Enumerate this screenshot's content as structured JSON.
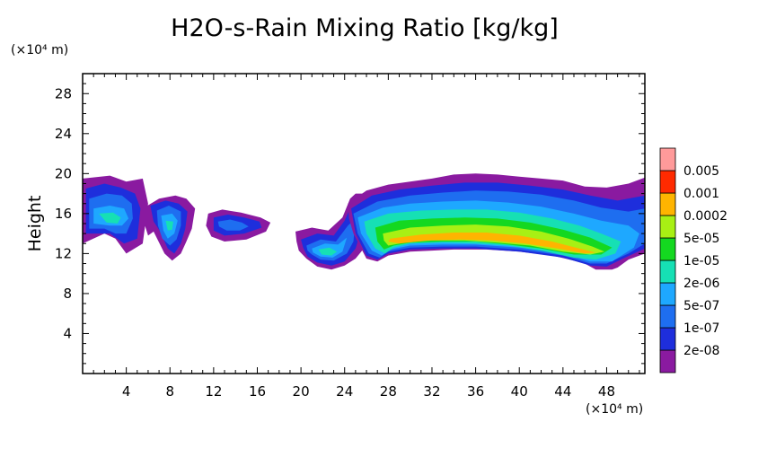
{
  "chart_data": {
    "type": "heatmap",
    "title": "H2O-s-Rain Mixing Ratio [kg/kg]",
    "ylabel": "Height",
    "xlabel": "",
    "x_unit": "(×10⁴ m)",
    "y_unit": "(×10⁴ m)",
    "xlim": [
      0,
      51.5
    ],
    "ylim": [
      0,
      30
    ],
    "x_ticks": [
      "4",
      "8",
      "12",
      "16",
      "20",
      "24",
      "28",
      "32",
      "36",
      "40",
      "44",
      "48"
    ],
    "y_ticks": [
      "4",
      "8",
      "12",
      "16",
      "20",
      "24",
      "28"
    ],
    "grid": false,
    "legend_position": "right",
    "colorbar": {
      "levels": [
        "2e-08",
        "1e-07",
        "5e-07",
        "2e-06",
        "1e-05",
        "5e-05",
        "0.0002",
        "0.001",
        "0.005"
      ],
      "colors": [
        "#8a1aa0",
        "#1e2edc",
        "#1e6ef0",
        "#1ea8ff",
        "#16e0b4",
        "#14d820",
        "#a8f014",
        "#ffb400",
        "#ff2a00",
        "#ff9a9a"
      ]
    },
    "regions": [
      {
        "x": [
          0,
          2.5,
          4,
          5.5,
          6,
          5.5,
          4,
          3,
          2,
          0
        ],
        "y": [
          19.5,
          19.8,
          19.2,
          19.5,
          17,
          13,
          12,
          13.5,
          14,
          13
        ],
        "level": 0
      },
      {
        "x": [
          0.3,
          2,
          3.5,
          4.8,
          5.3,
          5,
          3.8,
          2.5,
          0.3
        ],
        "y": [
          18.5,
          19,
          18.6,
          18,
          16.5,
          13.5,
          13,
          14,
          14
        ],
        "level": 1
      },
      {
        "x": [
          0.6,
          2.2,
          3.6,
          4.5,
          4.6,
          4,
          3,
          2,
          0.6
        ],
        "y": [
          17.5,
          18,
          17.8,
          17,
          15.5,
          14,
          14,
          14.5,
          14.5
        ],
        "level": 2
      },
      {
        "x": [
          1,
          2.5,
          3.8,
          4.2,
          3.6,
          2.5,
          1
        ],
        "y": [
          16.5,
          16.8,
          16.5,
          15.5,
          14.8,
          14.8,
          15
        ],
        "level": 3
      },
      {
        "x": [
          1.5,
          2.8,
          3.5,
          3.2,
          2.2
        ],
        "y": [
          16,
          16.1,
          15.6,
          15,
          15.1
        ],
        "level": 4
      },
      {
        "x": [
          5.5,
          7,
          8.5,
          9.5,
          10.3,
          10,
          9.5,
          9,
          8.2,
          7.5,
          6.5,
          6,
          5.5
        ],
        "y": [
          16.5,
          17.5,
          17.8,
          17.5,
          16.5,
          14.5,
          13.2,
          12,
          11.3,
          12,
          14.2,
          13.8,
          15.5
        ],
        "level": 0
      },
      {
        "x": [
          6.2,
          7.6,
          8.8,
          9.6,
          9.4,
          9,
          8.4,
          7.8,
          7,
          6.5
        ],
        "y": [
          16.8,
          17.3,
          17,
          16.2,
          14.5,
          13,
          12,
          12.5,
          14.4,
          15.2
        ],
        "level": 1
      },
      {
        "x": [
          6.8,
          7.9,
          9,
          9,
          8.6,
          8,
          7.3,
          6.9
        ],
        "y": [
          16.3,
          16.8,
          16.2,
          14.8,
          13.4,
          12.8,
          13.5,
          14.8
        ],
        "level": 2
      },
      {
        "x": [
          7.2,
          8.2,
          8.7,
          8.4,
          7.8,
          7.4
        ],
        "y": [
          15.8,
          16,
          15.3,
          14,
          13.5,
          14.3
        ],
        "level": 3
      },
      {
        "x": [
          7.6,
          8.3,
          8.2,
          7.8
        ],
        "y": [
          15.3,
          15.2,
          14.4,
          14.3
        ],
        "level": 4
      },
      {
        "x": [
          11.5,
          12.8,
          14.5,
          16.3,
          17.2,
          16.8,
          15,
          13,
          11.8,
          11.3
        ],
        "y": [
          16,
          16.4,
          16.1,
          15.6,
          15.1,
          14.2,
          13.4,
          13.2,
          13.7,
          14.8
        ],
        "level": 0
      },
      {
        "x": [
          12,
          13.3,
          14.8,
          16.2,
          16.4,
          14.8,
          13,
          12
        ],
        "y": [
          15.6,
          15.9,
          15.6,
          15.2,
          14.6,
          14,
          13.8,
          14.3
        ],
        "level": 1
      },
      {
        "x": [
          12.4,
          13.5,
          14.6,
          15.2,
          14.4,
          13.2,
          12.5
        ],
        "y": [
          15.2,
          15.4,
          15.1,
          14.7,
          14.3,
          14.3,
          14.7
        ],
        "level": 2
      },
      {
        "x": [
          19.5,
          21,
          22.5,
          23.8,
          24.5,
          25,
          26,
          26.5,
          27,
          26.5,
          25,
          24,
          22.8,
          21.5,
          20.5,
          19.8,
          19.6
        ],
        "y": [
          14.2,
          14.6,
          14.3,
          15.6,
          17.5,
          18,
          18,
          17,
          15,
          13.5,
          11.5,
          10.8,
          10.4,
          10.7,
          11.5,
          12.3,
          13.2
        ],
        "level": 0
      },
      {
        "x": [
          20,
          21.5,
          23,
          24,
          24.7,
          25.6,
          26,
          25,
          24,
          22.8,
          21.5,
          20.6,
          20.2
        ],
        "y": [
          13.4,
          14,
          13.8,
          15.3,
          17,
          17.3,
          16,
          12.5,
          11.2,
          10.8,
          11.1,
          11.7,
          12.6
        ],
        "level": 1
      },
      {
        "x": [
          20.5,
          21.8,
          23.2,
          24.3,
          25,
          24.8,
          24.2,
          23,
          21.8,
          21,
          20.6
        ],
        "y": [
          12.8,
          13.4,
          13.2,
          14.8,
          15.5,
          13.2,
          12,
          11.3,
          11.4,
          11.9,
          12.3
        ],
        "level": 2
      },
      {
        "x": [
          21,
          22.2,
          23.4,
          24.2,
          23.8,
          22.9,
          21.8,
          21.1
        ],
        "y": [
          12.5,
          13,
          12.9,
          13.6,
          12.2,
          11.6,
          11.7,
          12.1
        ],
        "level": 3
      },
      {
        "x": [
          21.6,
          22.6,
          23.3,
          22.8,
          21.9
        ],
        "y": [
          12.4,
          12.6,
          12.2,
          11.8,
          11.9
        ],
        "level": 4
      },
      {
        "x": [
          24.3,
          26,
          28,
          30,
          32,
          34,
          36,
          38,
          40,
          42,
          44,
          46,
          48,
          50,
          51.5,
          51.5,
          50,
          49,
          48.5,
          47,
          46,
          45,
          43,
          40,
          37,
          34,
          32,
          30,
          28,
          27,
          26,
          24.8,
          24.4
        ],
        "y": [
          17,
          18.3,
          18.9,
          19.2,
          19.5,
          19.9,
          20,
          19.9,
          19.7,
          19.5,
          19.3,
          18.7,
          18.6,
          19,
          19.6,
          12,
          11.4,
          10.6,
          10.4,
          10.4,
          11,
          11.3,
          11.8,
          12.2,
          12.4,
          12.4,
          12.3,
          12.2,
          11.8,
          11.2,
          11.5,
          14,
          15.5
        ],
        "level": 0
      },
      {
        "x": [
          24.6,
          26.5,
          29,
          32,
          35,
          38,
          41,
          44,
          46.5,
          49,
          51.5,
          51.5,
          49.5,
          48,
          46.5,
          44,
          40,
          36,
          33,
          30,
          28,
          27,
          26,
          25
        ],
        "y": [
          16.5,
          17.8,
          18.4,
          18.8,
          19.1,
          19.1,
          18.8,
          18.4,
          17.8,
          17.3,
          17.8,
          12.5,
          11.5,
          10.7,
          10.8,
          11.6,
          12.2,
          12.5,
          12.5,
          12.4,
          12,
          11.4,
          11.8,
          14
        ],
        "level": 1
      },
      {
        "x": [
          24.8,
          27,
          30,
          33,
          36,
          39,
          42,
          45,
          47.5,
          50,
          51.5,
          51.5,
          50,
          48,
          46.5,
          44,
          40,
          36,
          33,
          30,
          28,
          27.2,
          26.2,
          25.2
        ],
        "y": [
          16,
          17.2,
          17.8,
          18.1,
          18.3,
          18.2,
          17.9,
          17.3,
          16.6,
          16.2,
          16.5,
          13,
          12,
          11,
          11,
          11.8,
          12.4,
          12.7,
          12.7,
          12.6,
          12.2,
          11.6,
          12,
          14
        ],
        "level": 2
      },
      {
        "x": [
          25.2,
          27.5,
          30,
          33,
          36,
          39,
          42,
          45,
          47.5,
          50,
          51,
          50.5,
          48.5,
          46.5,
          44,
          40,
          36,
          33,
          30,
          28.2,
          27.4,
          26.5,
          25.5
        ],
        "y": [
          15.6,
          16.6,
          17,
          17.2,
          17.3,
          17.1,
          16.7,
          16,
          15.3,
          14.8,
          14,
          12.6,
          11.2,
          11.2,
          12,
          12.6,
          12.9,
          12.9,
          12.8,
          12.4,
          11.8,
          12.3,
          14
        ],
        "level": 3
      },
      {
        "x": [
          25.8,
          28,
          31,
          34,
          37,
          40,
          43,
          45.5,
          47.5,
          49.3,
          48.8,
          47,
          45,
          42,
          39,
          36,
          33,
          30,
          28.5,
          27.7,
          26.8,
          26
        ],
        "y": [
          15.2,
          16,
          16.3,
          16.4,
          16.4,
          16.1,
          15.5,
          14.8,
          14,
          13.2,
          12,
          11.4,
          11.6,
          12.3,
          12.8,
          13,
          13.1,
          13,
          12.6,
          12,
          12.5,
          14
        ],
        "level": 4
      },
      {
        "x": [
          26.8,
          29,
          32,
          35,
          38,
          41,
          44,
          46.5,
          48.5,
          47.5,
          45,
          42,
          39,
          36,
          33,
          30,
          28.5,
          27.6,
          27
        ],
        "y": [
          14.6,
          15.3,
          15.5,
          15.6,
          15.5,
          15.1,
          14.4,
          13.6,
          12.6,
          11.9,
          11.9,
          12.5,
          12.9,
          13.2,
          13.2,
          13.1,
          12.8,
          12.4,
          13.2
        ],
        "level": 5
      },
      {
        "x": [
          27.5,
          30,
          33,
          36,
          39,
          42,
          44.5,
          46.7,
          47.8,
          46.5,
          44,
          41,
          38,
          35,
          32,
          29.5,
          28,
          27.6
        ],
        "y": [
          14,
          14.6,
          14.8,
          14.9,
          14.7,
          14.2,
          13.5,
          12.7,
          12.2,
          11.9,
          12.2,
          12.8,
          13.1,
          13.3,
          13.3,
          13.1,
          12.8,
          13.3
        ],
        "level": 6
      },
      {
        "x": [
          28.2,
          31,
          34,
          37,
          40,
          43,
          45.5,
          47,
          46,
          43.5,
          40.5,
          37.5,
          34.5,
          31.5,
          29,
          28
        ],
        "y": [
          13.5,
          13.9,
          14.1,
          14.1,
          13.8,
          13.2,
          12.5,
          12.1,
          12,
          12.5,
          13,
          13.3,
          13.4,
          13.3,
          13,
          13.2
        ],
        "level": 7
      }
    ]
  }
}
